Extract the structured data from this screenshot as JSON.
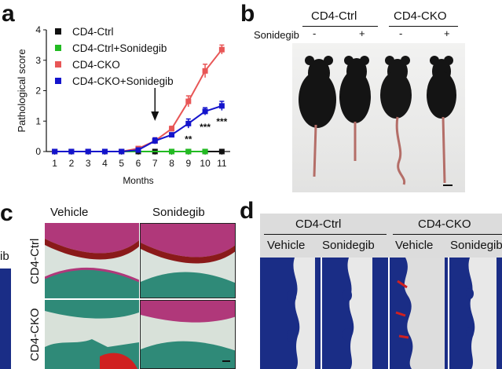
{
  "panels": {
    "a": {
      "label": "a"
    },
    "b": {
      "label": "b",
      "groups": [
        "CD4-Ctrl",
        "CD4-CKO"
      ],
      "row_label": "Sonidegib",
      "signs": [
        "-",
        "+",
        "-",
        "+"
      ]
    },
    "c": {
      "label": "c",
      "cols": [
        "Vehicle",
        "Sonidegib"
      ],
      "rows": [
        "CD4-Ctrl",
        "CD4-CKO"
      ],
      "left_partial": "ib"
    },
    "d": {
      "label": "d",
      "groups": [
        "CD4-Ctrl",
        "CD4-CKO"
      ],
      "cols": [
        "Vehicle",
        "Sonidegib",
        "Vehicle",
        "Sonidegib"
      ]
    }
  },
  "chart_data": {
    "type": "line",
    "xlabel": "Months",
    "ylabel": "Pathological score",
    "x": [
      1,
      2,
      3,
      4,
      5,
      6,
      7,
      8,
      9,
      10,
      11
    ],
    "ylim": [
      0,
      4
    ],
    "yticks": [
      "0",
      "1",
      "2",
      "3",
      "4"
    ],
    "series": [
      {
        "name": "CD4-Ctrl",
        "color": "#111111",
        "marker": "square",
        "values": [
          0,
          0,
          0,
          0,
          0,
          0,
          0,
          0,
          0,
          0,
          0
        ]
      },
      {
        "name": "CD4-Ctrl+Sonidegib",
        "color": "#22bb22",
        "marker": "square",
        "values": [
          null,
          0,
          null,
          null,
          null,
          null,
          null,
          0,
          0,
          0,
          null
        ]
      },
      {
        "name": "CD4-CKO",
        "color": "#e85656",
        "marker": "square",
        "values": [
          0,
          0,
          0,
          0,
          0,
          0.1,
          0.35,
          0.75,
          1.65,
          2.65,
          3.35
        ],
        "errors": [
          0,
          0,
          0,
          0,
          0,
          0.03,
          0.1,
          0.08,
          0.18,
          0.22,
          0.15
        ]
      },
      {
        "name": "CD4-CKO+Sonidegib",
        "color": "#1414cc",
        "marker": "square",
        "values": [
          0,
          0,
          0,
          0,
          0,
          0.05,
          0.35,
          0.55,
          0.92,
          1.32,
          1.5
        ],
        "errors": [
          0,
          0,
          0,
          0,
          0,
          0.03,
          0.1,
          0.06,
          0.15,
          0.12,
          0.15
        ]
      }
    ],
    "arrow_at_x": 7,
    "annotations": [
      {
        "x": 9,
        "text": "**"
      },
      {
        "x": 10,
        "text": "***"
      },
      {
        "x": 11,
        "text": "***"
      }
    ]
  }
}
